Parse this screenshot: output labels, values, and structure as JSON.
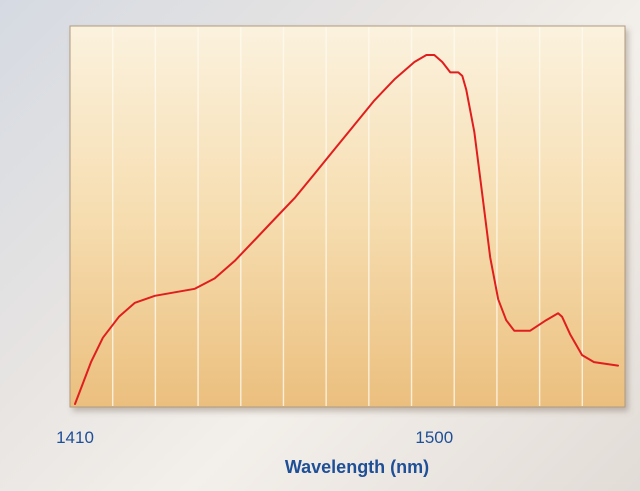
{
  "chart_data": {
    "type": "line",
    "title": "",
    "xlabel": "Wavelength (nm)",
    "ylabel": "",
    "xlim": [
      1410,
      1546
    ],
    "ylim": [
      0,
      1
    ],
    "x_ticks": [
      1410,
      1500
    ],
    "x_tick_labels": [
      "1410",
      "1500"
    ],
    "grid": "vertical",
    "series": [
      {
        "color": "#e01e1e",
        "x": [
          1410,
          1412,
          1414,
          1417,
          1421,
          1425,
          1430,
          1435,
          1440,
          1445,
          1450,
          1455,
          1460,
          1465,
          1470,
          1475,
          1480,
          1485,
          1490,
          1495,
          1498,
          1500,
          1502,
          1504,
          1506,
          1507,
          1508,
          1510,
          1512,
          1514,
          1516,
          1518,
          1520,
          1524,
          1528,
          1531,
          1532,
          1534,
          1537,
          1540,
          1546
        ],
        "values": [
          0.0,
          0.06,
          0.12,
          0.19,
          0.25,
          0.29,
          0.31,
          0.32,
          0.33,
          0.36,
          0.41,
          0.47,
          0.53,
          0.59,
          0.66,
          0.73,
          0.8,
          0.87,
          0.93,
          0.98,
          1.0,
          1.0,
          0.98,
          0.95,
          0.95,
          0.94,
          0.9,
          0.78,
          0.6,
          0.42,
          0.3,
          0.24,
          0.21,
          0.21,
          0.24,
          0.26,
          0.25,
          0.2,
          0.14,
          0.12,
          0.11
        ]
      }
    ]
  }
}
